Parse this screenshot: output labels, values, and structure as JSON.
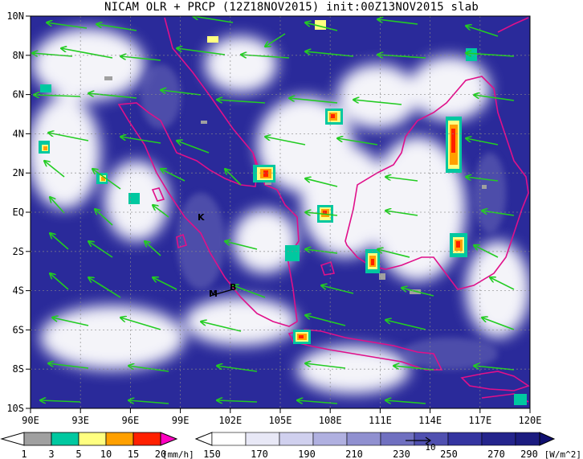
{
  "title": "NICAM OLR + PRCP (12Z18NOV2015) init:00Z13NOV2015 slab",
  "map": {
    "x_ticks": [
      "90E",
      "93E",
      "96E",
      "99E",
      "102E",
      "105E",
      "108E",
      "111E",
      "114E",
      "117E",
      "120E"
    ],
    "y_ticks": [
      "10N",
      "8N",
      "6N",
      "4N",
      "2N",
      "EQ",
      "2S",
      "4S",
      "6S",
      "8S",
      "10S"
    ],
    "place_labels": [
      "K",
      "M",
      "B"
    ]
  },
  "colors": {
    "ocean_deep": "#1c1c80",
    "ocean": "#2a2a9a",
    "cloud": "#ffffff",
    "coastline": "#e0108a",
    "wind_arrow": "#22cc22",
    "precip": [
      "#a0a0a0",
      "#00c8a0",
      "#ffff80",
      "#ffa000",
      "#ff2000",
      "#ff00c0"
    ],
    "olr": [
      "#ffffff",
      "#e8e8f6",
      "#d0d0ee",
      "#b8b8e4",
      "#a0a0d8",
      "#8888cc",
      "#7070c0",
      "#5858b4",
      "#4040a8",
      "#2a2a9a",
      "#1c1c80"
    ]
  },
  "legend": {
    "precip": {
      "ticks": [
        "1",
        "3",
        "5",
        "10",
        "15",
        "20"
      ],
      "unit": "[mm/h]"
    },
    "olr": {
      "ticks": [
        "150",
        "170",
        "190",
        "210",
        "230",
        "250",
        "270",
        "290"
      ],
      "unit": "[W/m^2]",
      "vector_label": "10"
    }
  }
}
